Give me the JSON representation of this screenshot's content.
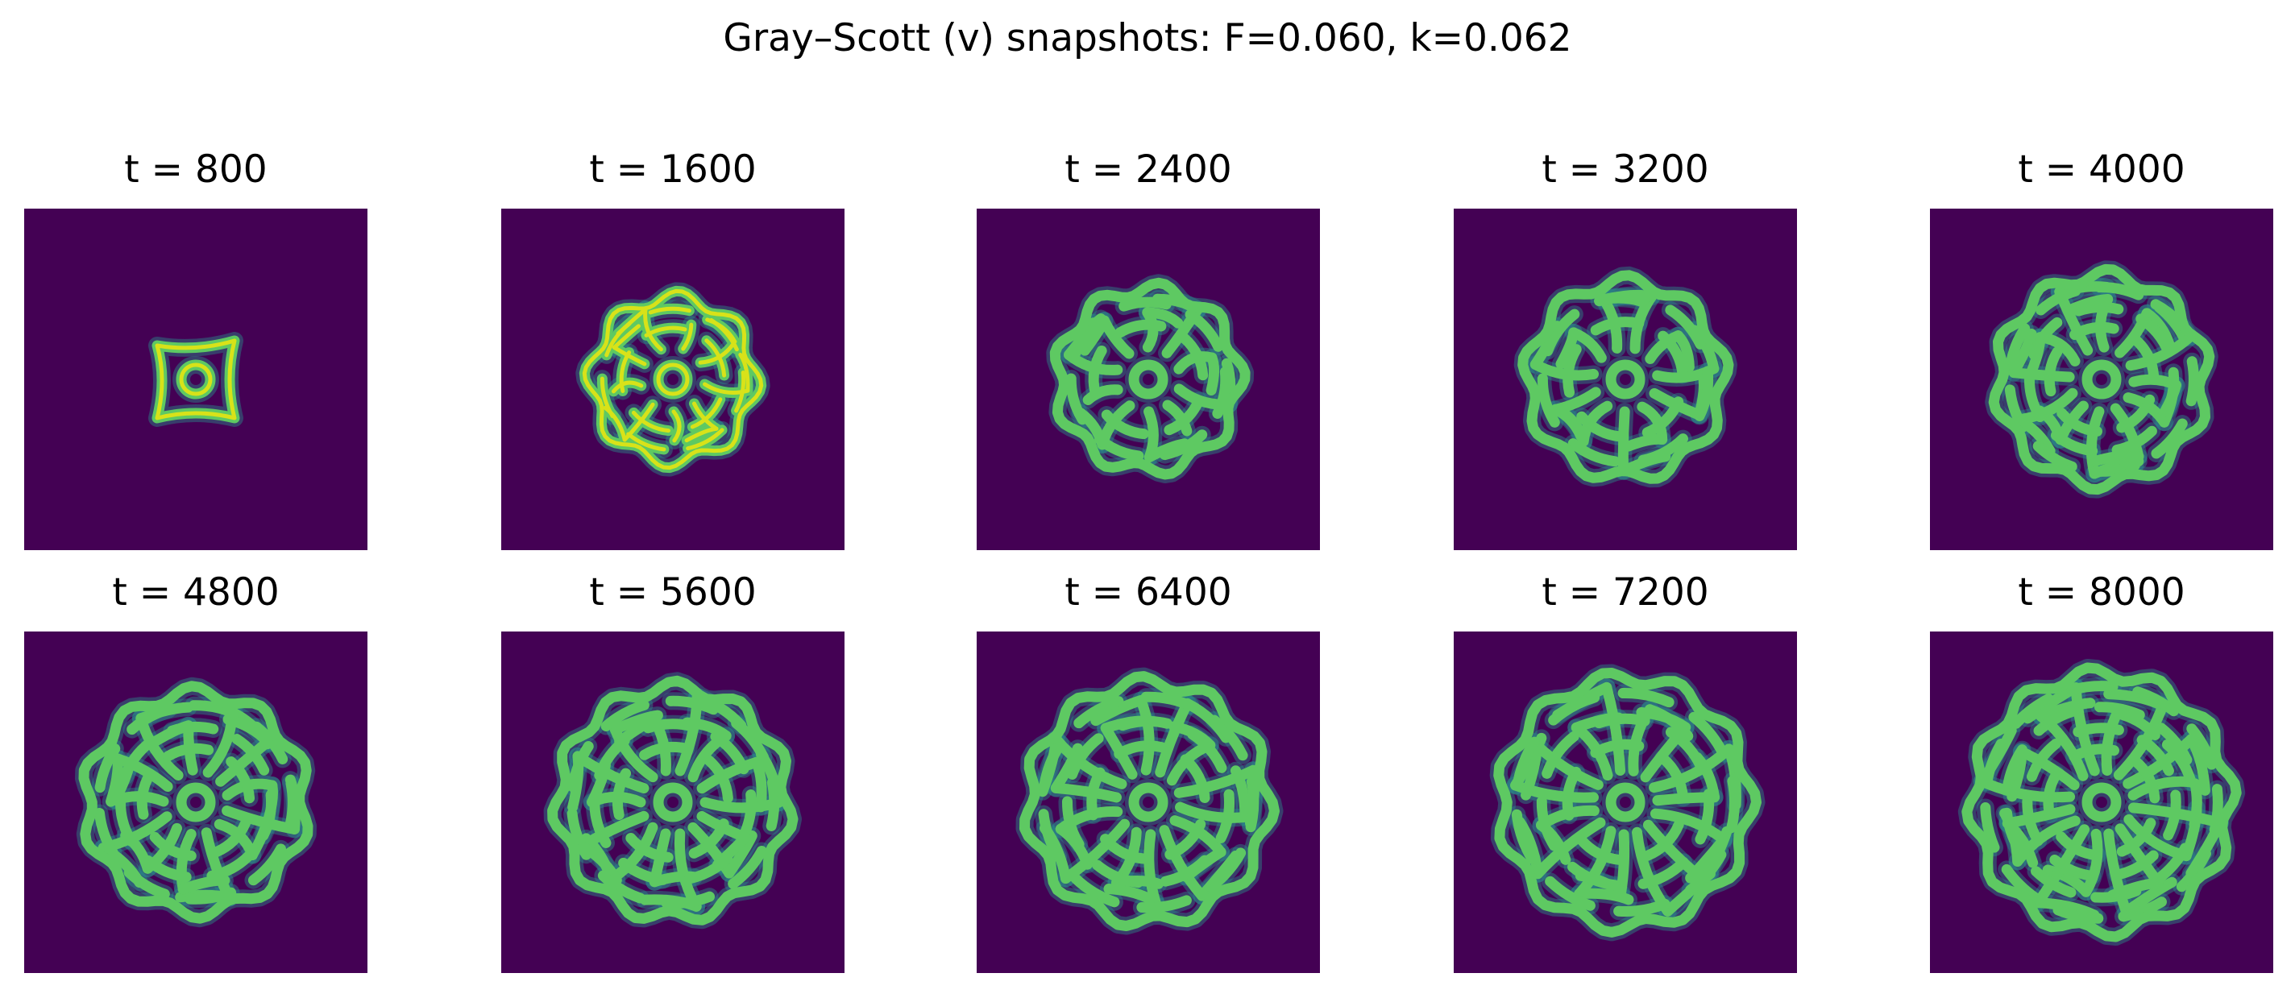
{
  "chart_data": {
    "type": "heatmap",
    "title": "Gray–Scott (v) snapshots: F=0.060, k=0.062",
    "field": "v",
    "parameters": {
      "F": 0.06,
      "k": 0.062
    },
    "colormap": "viridis",
    "colors": {
      "background": "#440154",
      "pattern_mid": "#5ec962",
      "pattern_peak": "#d8e219"
    },
    "panels": [
      {
        "title": "t = 800",
        "t": 800
      },
      {
        "title": "t = 1600",
        "t": 1600
      },
      {
        "title": "t = 2400",
        "t": 2400
      },
      {
        "title": "t = 3200",
        "t": 3200
      },
      {
        "title": "t = 4000",
        "t": 4000
      },
      {
        "title": "t = 4800",
        "t": 4800
      },
      {
        "title": "t = 5600",
        "t": 5600
      },
      {
        "title": "t = 6400",
        "t": 6400
      },
      {
        "title": "t = 7200",
        "t": 7200
      },
      {
        "title": "t = 8000",
        "t": 8000
      }
    ]
  }
}
